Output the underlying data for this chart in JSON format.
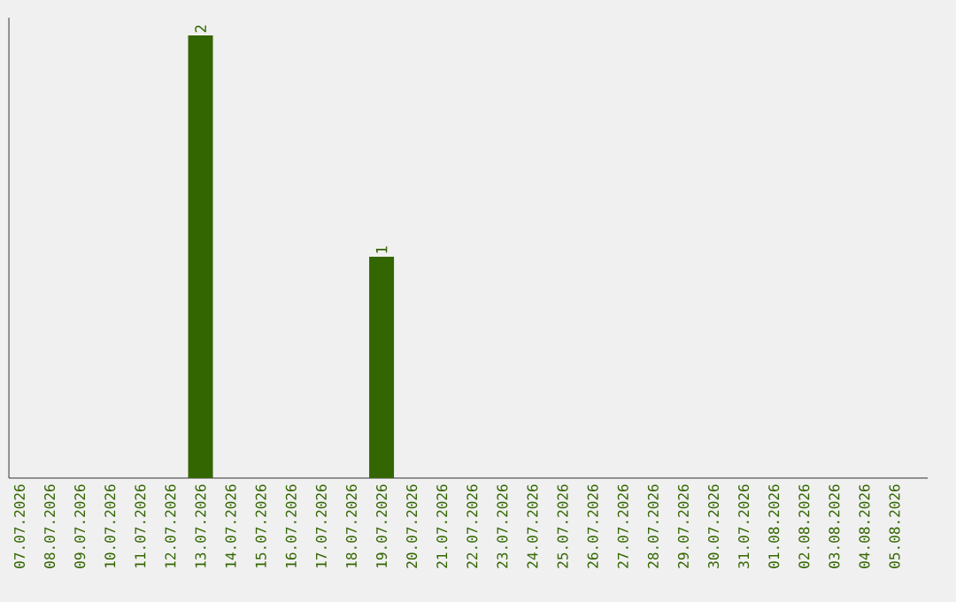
{
  "chart_data": {
    "type": "bar",
    "categories": [
      "07.07.2026",
      "08.07.2026",
      "09.07.2026",
      "10.07.2026",
      "11.07.2026",
      "12.07.2026",
      "13.07.2026",
      "14.07.2026",
      "15.07.2026",
      "16.07.2026",
      "17.07.2026",
      "18.07.2026",
      "19.07.2026",
      "20.07.2026",
      "21.07.2026",
      "22.07.2026",
      "23.07.2026",
      "24.07.2026",
      "25.07.2026",
      "26.07.2026",
      "27.07.2026",
      "28.07.2026",
      "29.07.2026",
      "30.07.2026",
      "31.07.2026",
      "01.08.2026",
      "02.08.2026",
      "03.08.2026",
      "04.08.2026",
      "05.08.2026"
    ],
    "values": [
      0,
      0,
      0,
      0,
      0,
      0,
      2,
      0,
      0,
      0,
      0,
      0,
      1,
      0,
      0,
      0,
      0,
      0,
      0,
      0,
      0,
      0,
      0,
      0,
      0,
      0,
      0,
      0,
      0,
      0
    ],
    "value_labels": [
      null,
      null,
      null,
      null,
      null,
      null,
      "2",
      null,
      null,
      null,
      null,
      null,
      "1",
      null,
      null,
      null,
      null,
      null,
      null,
      null,
      null,
      null,
      null,
      null,
      null,
      null,
      null,
      null,
      null,
      null
    ],
    "color": "#336600",
    "tick_labels": "x"
  }
}
